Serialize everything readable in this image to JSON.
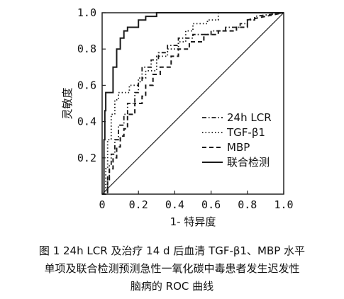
{
  "chart_data": {
    "type": "line",
    "title": "",
    "xlabel": "1- 特异度",
    "ylabel": "灵敏度",
    "xlim": [
      0,
      1
    ],
    "ylim": [
      0,
      1
    ],
    "x_ticks": [
      "0",
      "0.2",
      "0.4",
      "0.6",
      "0.8",
      "1.0"
    ],
    "y_ticks": [
      "0.2",
      "0.4",
      "0.6",
      "0.8",
      "1.0"
    ],
    "grid": false,
    "legend_position": "bottom-right",
    "reference_line": {
      "from": [
        0,
        0
      ],
      "to": [
        1,
        1
      ]
    },
    "series": [
      {
        "name": "24h LCR",
        "style": "dashdot",
        "points": [
          [
            0,
            0
          ],
          [
            0.03,
            0
          ],
          [
            0.03,
            0.1
          ],
          [
            0.04,
            0.1
          ],
          [
            0.04,
            0.16
          ],
          [
            0.05,
            0.16
          ],
          [
            0.05,
            0.22
          ],
          [
            0.07,
            0.22
          ],
          [
            0.07,
            0.3
          ],
          [
            0.09,
            0.3
          ],
          [
            0.09,
            0.38
          ],
          [
            0.12,
            0.38
          ],
          [
            0.12,
            0.44
          ],
          [
            0.14,
            0.44
          ],
          [
            0.14,
            0.5
          ],
          [
            0.18,
            0.5
          ],
          [
            0.18,
            0.56
          ],
          [
            0.2,
            0.56
          ],
          [
            0.2,
            0.62
          ],
          [
            0.22,
            0.62
          ],
          [
            0.22,
            0.7
          ],
          [
            0.27,
            0.7
          ],
          [
            0.27,
            0.74
          ],
          [
            0.31,
            0.74
          ],
          [
            0.31,
            0.78
          ],
          [
            0.36,
            0.78
          ],
          [
            0.36,
            0.82
          ],
          [
            0.42,
            0.82
          ],
          [
            0.42,
            0.86
          ],
          [
            0.5,
            0.86
          ],
          [
            0.5,
            0.88
          ],
          [
            0.6,
            0.88
          ],
          [
            0.6,
            0.9
          ],
          [
            0.68,
            0.9
          ],
          [
            0.68,
            0.92
          ],
          [
            0.76,
            0.92
          ],
          [
            0.76,
            0.94
          ],
          [
            0.8,
            0.94
          ],
          [
            0.8,
            0.96
          ],
          [
            0.84,
            0.96
          ],
          [
            0.84,
            0.98
          ],
          [
            1,
            1
          ]
        ]
      },
      {
        "name": "TGF-β1",
        "style": "dotted",
        "points": [
          [
            0,
            0
          ],
          [
            0.02,
            0
          ],
          [
            0.02,
            0.14
          ],
          [
            0.03,
            0.14
          ],
          [
            0.03,
            0.3
          ],
          [
            0.05,
            0.3
          ],
          [
            0.05,
            0.44
          ],
          [
            0.07,
            0.44
          ],
          [
            0.07,
            0.52
          ],
          [
            0.09,
            0.52
          ],
          [
            0.09,
            0.56
          ],
          [
            0.15,
            0.56
          ],
          [
            0.15,
            0.6
          ],
          [
            0.2,
            0.6
          ],
          [
            0.2,
            0.64
          ],
          [
            0.24,
            0.64
          ],
          [
            0.24,
            0.68
          ],
          [
            0.3,
            0.68
          ],
          [
            0.3,
            0.76
          ],
          [
            0.36,
            0.76
          ],
          [
            0.36,
            0.8
          ],
          [
            0.42,
            0.8
          ],
          [
            0.42,
            0.84
          ],
          [
            0.46,
            0.84
          ],
          [
            0.46,
            0.9
          ],
          [
            0.5,
            0.9
          ],
          [
            0.5,
            0.94
          ],
          [
            0.58,
            0.94
          ],
          [
            0.58,
            0.96
          ],
          [
            0.64,
            0.96
          ],
          [
            0.64,
            1
          ],
          [
            1,
            1
          ]
        ]
      },
      {
        "name": "MBP",
        "style": "dashed",
        "points": [
          [
            0,
            0
          ],
          [
            0.03,
            0
          ],
          [
            0.03,
            0.08
          ],
          [
            0.04,
            0.08
          ],
          [
            0.04,
            0.14
          ],
          [
            0.06,
            0.14
          ],
          [
            0.06,
            0.2
          ],
          [
            0.08,
            0.2
          ],
          [
            0.08,
            0.26
          ],
          [
            0.1,
            0.26
          ],
          [
            0.1,
            0.32
          ],
          [
            0.12,
            0.32
          ],
          [
            0.12,
            0.36
          ],
          [
            0.14,
            0.36
          ],
          [
            0.14,
            0.44
          ],
          [
            0.18,
            0.44
          ],
          [
            0.18,
            0.5
          ],
          [
            0.22,
            0.5
          ],
          [
            0.22,
            0.54
          ],
          [
            0.24,
            0.54
          ],
          [
            0.24,
            0.6
          ],
          [
            0.28,
            0.6
          ],
          [
            0.28,
            0.66
          ],
          [
            0.32,
            0.66
          ],
          [
            0.32,
            0.7
          ],
          [
            0.38,
            0.7
          ],
          [
            0.38,
            0.76
          ],
          [
            0.42,
            0.76
          ],
          [
            0.42,
            0.8
          ],
          [
            0.48,
            0.8
          ],
          [
            0.48,
            0.84
          ],
          [
            0.56,
            0.84
          ],
          [
            0.56,
            0.88
          ],
          [
            0.64,
            0.88
          ],
          [
            0.64,
            0.9
          ],
          [
            0.74,
            0.9
          ],
          [
            0.74,
            0.92
          ],
          [
            0.8,
            0.92
          ],
          [
            0.8,
            0.96
          ],
          [
            1,
            1
          ]
        ]
      },
      {
        "name": "联合检测",
        "style": "solid",
        "points": [
          [
            0,
            0
          ],
          [
            0.01,
            0
          ],
          [
            0.01,
            0.3
          ],
          [
            0.015,
            0.3
          ],
          [
            0.015,
            0.46
          ],
          [
            0.02,
            0.46
          ],
          [
            0.02,
            0.56
          ],
          [
            0.06,
            0.56
          ],
          [
            0.06,
            0.7
          ],
          [
            0.08,
            0.7
          ],
          [
            0.08,
            0.8
          ],
          [
            0.1,
            0.8
          ],
          [
            0.1,
            0.86
          ],
          [
            0.12,
            0.86
          ],
          [
            0.12,
            0.9
          ],
          [
            0.14,
            0.9
          ],
          [
            0.14,
            0.92
          ],
          [
            0.2,
            0.92
          ],
          [
            0.2,
            0.96
          ],
          [
            0.24,
            0.96
          ],
          [
            0.24,
            0.98
          ],
          [
            0.3,
            0.98
          ],
          [
            0.3,
            1
          ],
          [
            1,
            1
          ]
        ]
      }
    ]
  },
  "caption": {
    "line1": "图 1  24h LCR 及治疗 14 d 后血清 TGF-β1、MBP 水平",
    "line2": "单项及联合检测预测急性一氧化碳中毒患者发生迟发性",
    "line3": "脑病的 ROC 曲线"
  }
}
